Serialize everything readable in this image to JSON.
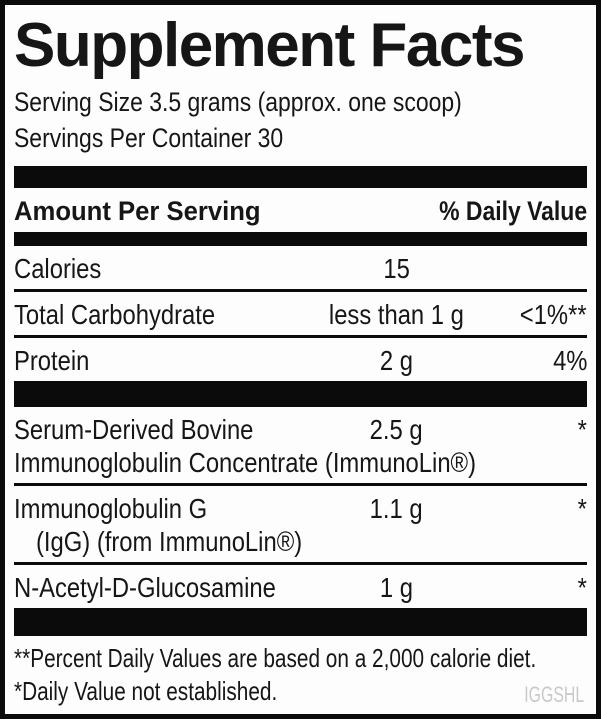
{
  "label": {
    "title": "Supplement Facts",
    "serving_size": "Serving Size 3.5 grams (approx. one scoop)",
    "servings_per_container": "Servings Per Container 30",
    "columns": {
      "amount_header": "Amount Per Serving",
      "dv_header": "% Daily Value"
    },
    "rows": [
      {
        "name": "Calories",
        "amount": "15",
        "dv": ""
      },
      {
        "name": "Total Carbohydrate",
        "amount": "less than 1 g",
        "dv": "<1%**"
      },
      {
        "name": "Protein",
        "amount": "2 g",
        "dv": "4%"
      },
      {
        "name": "Serum-Derived Bovine",
        "name_line2": "Immunoglobulin Concentrate (ImmunoLin®)",
        "amount": "2.5 g",
        "dv": "*"
      },
      {
        "name": "Immunoglobulin G",
        "name_line2": "(IgG) (from ImmunoLin®)",
        "amount": "1.1 g",
        "dv": "*"
      },
      {
        "name": "N-Acetyl-D-Glucosamine",
        "amount": "1 g",
        "dv": "*"
      }
    ],
    "footnotes": [
      "**Percent Daily Values are based on a 2,000 calorie diet.",
      "*Daily Value not established."
    ],
    "watermark": "IGGSHL",
    "colors": {
      "text": "#161616",
      "background": "#fdfdfd",
      "border": "#0b0b0b",
      "watermark": "#c9c9c9"
    }
  }
}
